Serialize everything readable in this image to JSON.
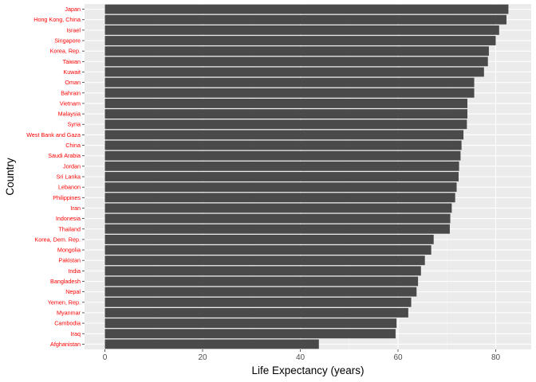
{
  "chart_data": {
    "type": "bar",
    "orientation": "horizontal",
    "xlabel": "Life Expectancy (years)",
    "ylabel": "Country",
    "xlim": [
      0,
      85
    ],
    "xticks": [
      0,
      20,
      40,
      60,
      80
    ],
    "grid": true,
    "colors": {
      "bar": "#4a4a4a",
      "panel": "#ebebeb",
      "grid_major": "#ffffff",
      "country_label": "#ff0000",
      "tick_label": "#4d4d4d"
    },
    "categories": [
      "Japan",
      "Hong Kong, China",
      "Israel",
      "Singapore",
      "Korea, Rep.",
      "Taiwan",
      "Kuwait",
      "Oman",
      "Bahrain",
      "Vietnam",
      "Malaysia",
      "Syria",
      "West Bank and Gaza",
      "China",
      "Saudi Arabia",
      "Jordan",
      "Sri Lanka",
      "Lebanon",
      "Philippines",
      "Iran",
      "Indonesia",
      "Thailand",
      "Korea, Dem. Rep.",
      "Mongolia",
      "Pakistan",
      "India",
      "Bangladesh",
      "Nepal",
      "Yemen, Rep.",
      "Myanmar",
      "Cambodia",
      "Iraq",
      "Afghanistan"
    ],
    "values": [
      82.6,
      82.2,
      80.7,
      80.0,
      78.6,
      78.4,
      77.6,
      75.6,
      75.6,
      74.2,
      74.2,
      74.1,
      73.4,
      73.0,
      72.8,
      72.5,
      72.4,
      72.0,
      71.7,
      71.0,
      70.7,
      70.6,
      67.3,
      66.8,
      65.5,
      64.7,
      64.1,
      63.8,
      62.7,
      62.1,
      59.7,
      59.5,
      43.8
    ]
  }
}
